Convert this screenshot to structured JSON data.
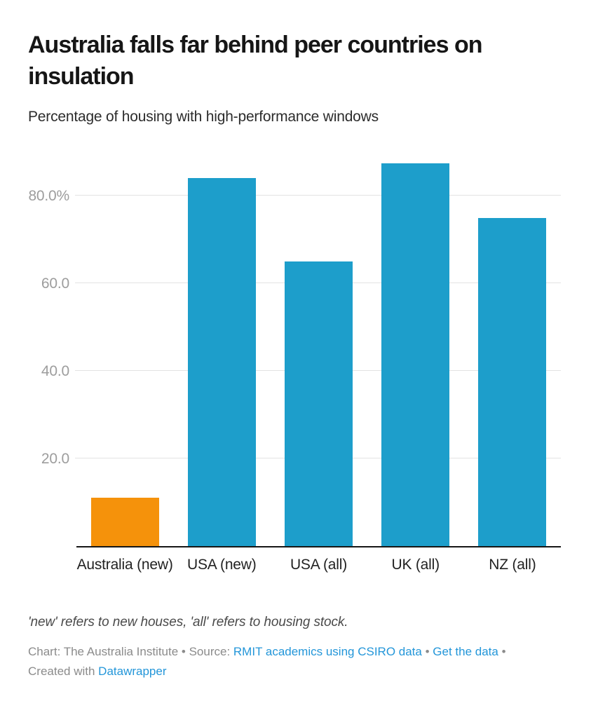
{
  "header": {
    "title": "Australia falls far behind peer countries on insulation",
    "subtitle": "Percentage of housing with high-performance windows"
  },
  "chart_data": {
    "type": "bar",
    "title": "Australia falls far behind peer countries on insulation",
    "subtitle": "Percentage of housing with high-performance windows",
    "categories": [
      "Australia (new)",
      "USA (new)",
      "USA (all)",
      "UK (all)",
      "NZ (all)"
    ],
    "values": [
      11,
      84,
      65,
      87.5,
      75
    ],
    "unit": "%",
    "bar_colors": [
      "#f5920b",
      "#1d9ecb",
      "#1d9ecb",
      "#1d9ecb",
      "#1d9ecb"
    ],
    "highlight_color": "#f5920b",
    "default_color": "#1d9ecb",
    "xlabel": "",
    "ylabel": "",
    "ylim": [
      0,
      88.7
    ],
    "yticks": [
      {
        "value": 20,
        "label": "20.0"
      },
      {
        "value": 40,
        "label": "40.0"
      },
      {
        "value": 60,
        "label": "60.0"
      },
      {
        "value": 80,
        "label": "80.0%"
      }
    ],
    "grid": "horizontal",
    "legend_position": "none"
  },
  "footer": {
    "note": "'new' refers to new houses, 'all' refers to housing stock.",
    "attribution": {
      "credit_text": "Chart: The Australia Institute • Source: ",
      "source_link_label": "RMIT academics using CSIRO data",
      "separator": " • ",
      "get_data_link_label": "Get the data",
      "created_with_text": " • Created with ",
      "datawrapper_link_label": "Datawrapper"
    }
  },
  "colors": {
    "bar_default": "#1d9ecb",
    "bar_highlight": "#f5920b",
    "link": "#2396d9",
    "gridline": "#e2e2e2",
    "axis_line": "#161616",
    "ytick_label": "#9d9d9d",
    "xtick_label": "#222222",
    "title_text": "#161616",
    "note_text": "#4a4a4a",
    "attribution_text": "#8b8b8b"
  }
}
